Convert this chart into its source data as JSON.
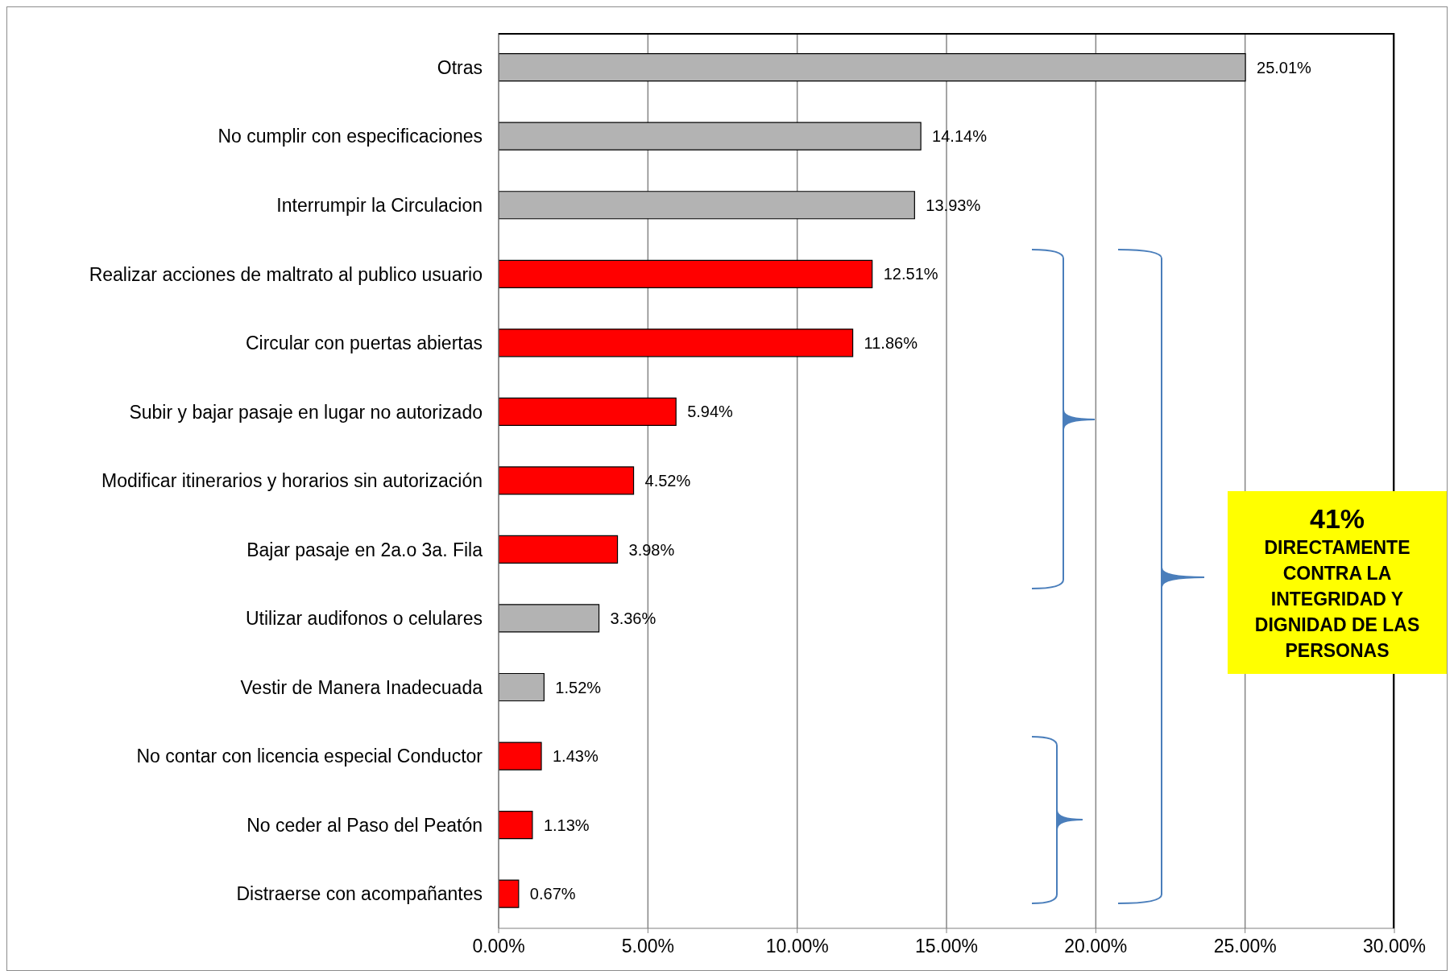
{
  "chart_data": {
    "type": "bar",
    "orientation": "horizontal",
    "categories": [
      "Otras",
      "No cumplir con especificaciones",
      "Interrumpir la Circulacion",
      "Realizar acciones de maltrato al publico usuario",
      "Circular con puertas abiertas",
      "Subir y bajar pasaje en lugar no autorizado",
      "Modificar itinerarios y horarios sin autorización",
      "Bajar pasaje en 2a.o 3a. Fila",
      "Utilizar audifonos o celulares",
      "Vestir de Manera Inadecuada",
      "No contar con licencia especial Conductor",
      "No ceder al Paso del Peatón",
      "Distraerse con acompañantes"
    ],
    "values": [
      25.01,
      14.14,
      13.93,
      12.51,
      11.86,
      5.94,
      4.52,
      3.98,
      3.36,
      1.52,
      1.43,
      1.13,
      0.67
    ],
    "value_labels": [
      "25.01%",
      "14.14%",
      "13.93%",
      "12.51%",
      "11.86%",
      "5.94%",
      "4.52%",
      "3.98%",
      "3.36%",
      "1.52%",
      "1.43%",
      "1.13%",
      "0.67%"
    ],
    "colors": [
      "#b3b3b3",
      "#b3b3b3",
      "#b3b3b3",
      "#ff0000",
      "#ff0000",
      "#ff0000",
      "#ff0000",
      "#ff0000",
      "#b3b3b3",
      "#b3b3b3",
      "#ff0000",
      "#ff0000",
      "#ff0000"
    ],
    "xlim": [
      0,
      30
    ],
    "xticks": [
      {
        "value": 0,
        "label": "0.00%"
      },
      {
        "value": 5,
        "label": "5.00%"
      },
      {
        "value": 10,
        "label": "10.00%"
      },
      {
        "value": 15,
        "label": "15.00%"
      },
      {
        "value": 20,
        "label": "20.00%"
      },
      {
        "value": 25,
        "label": "25.00%"
      },
      {
        "value": 30,
        "label": "30.00%"
      }
    ],
    "grid": "x",
    "annotations": [
      "41%",
      "DIRECTAMENTE CONTRA LA INTEGRIDAD Y DIGNIDAD DE LAS PERSONAS"
    ]
  }
}
